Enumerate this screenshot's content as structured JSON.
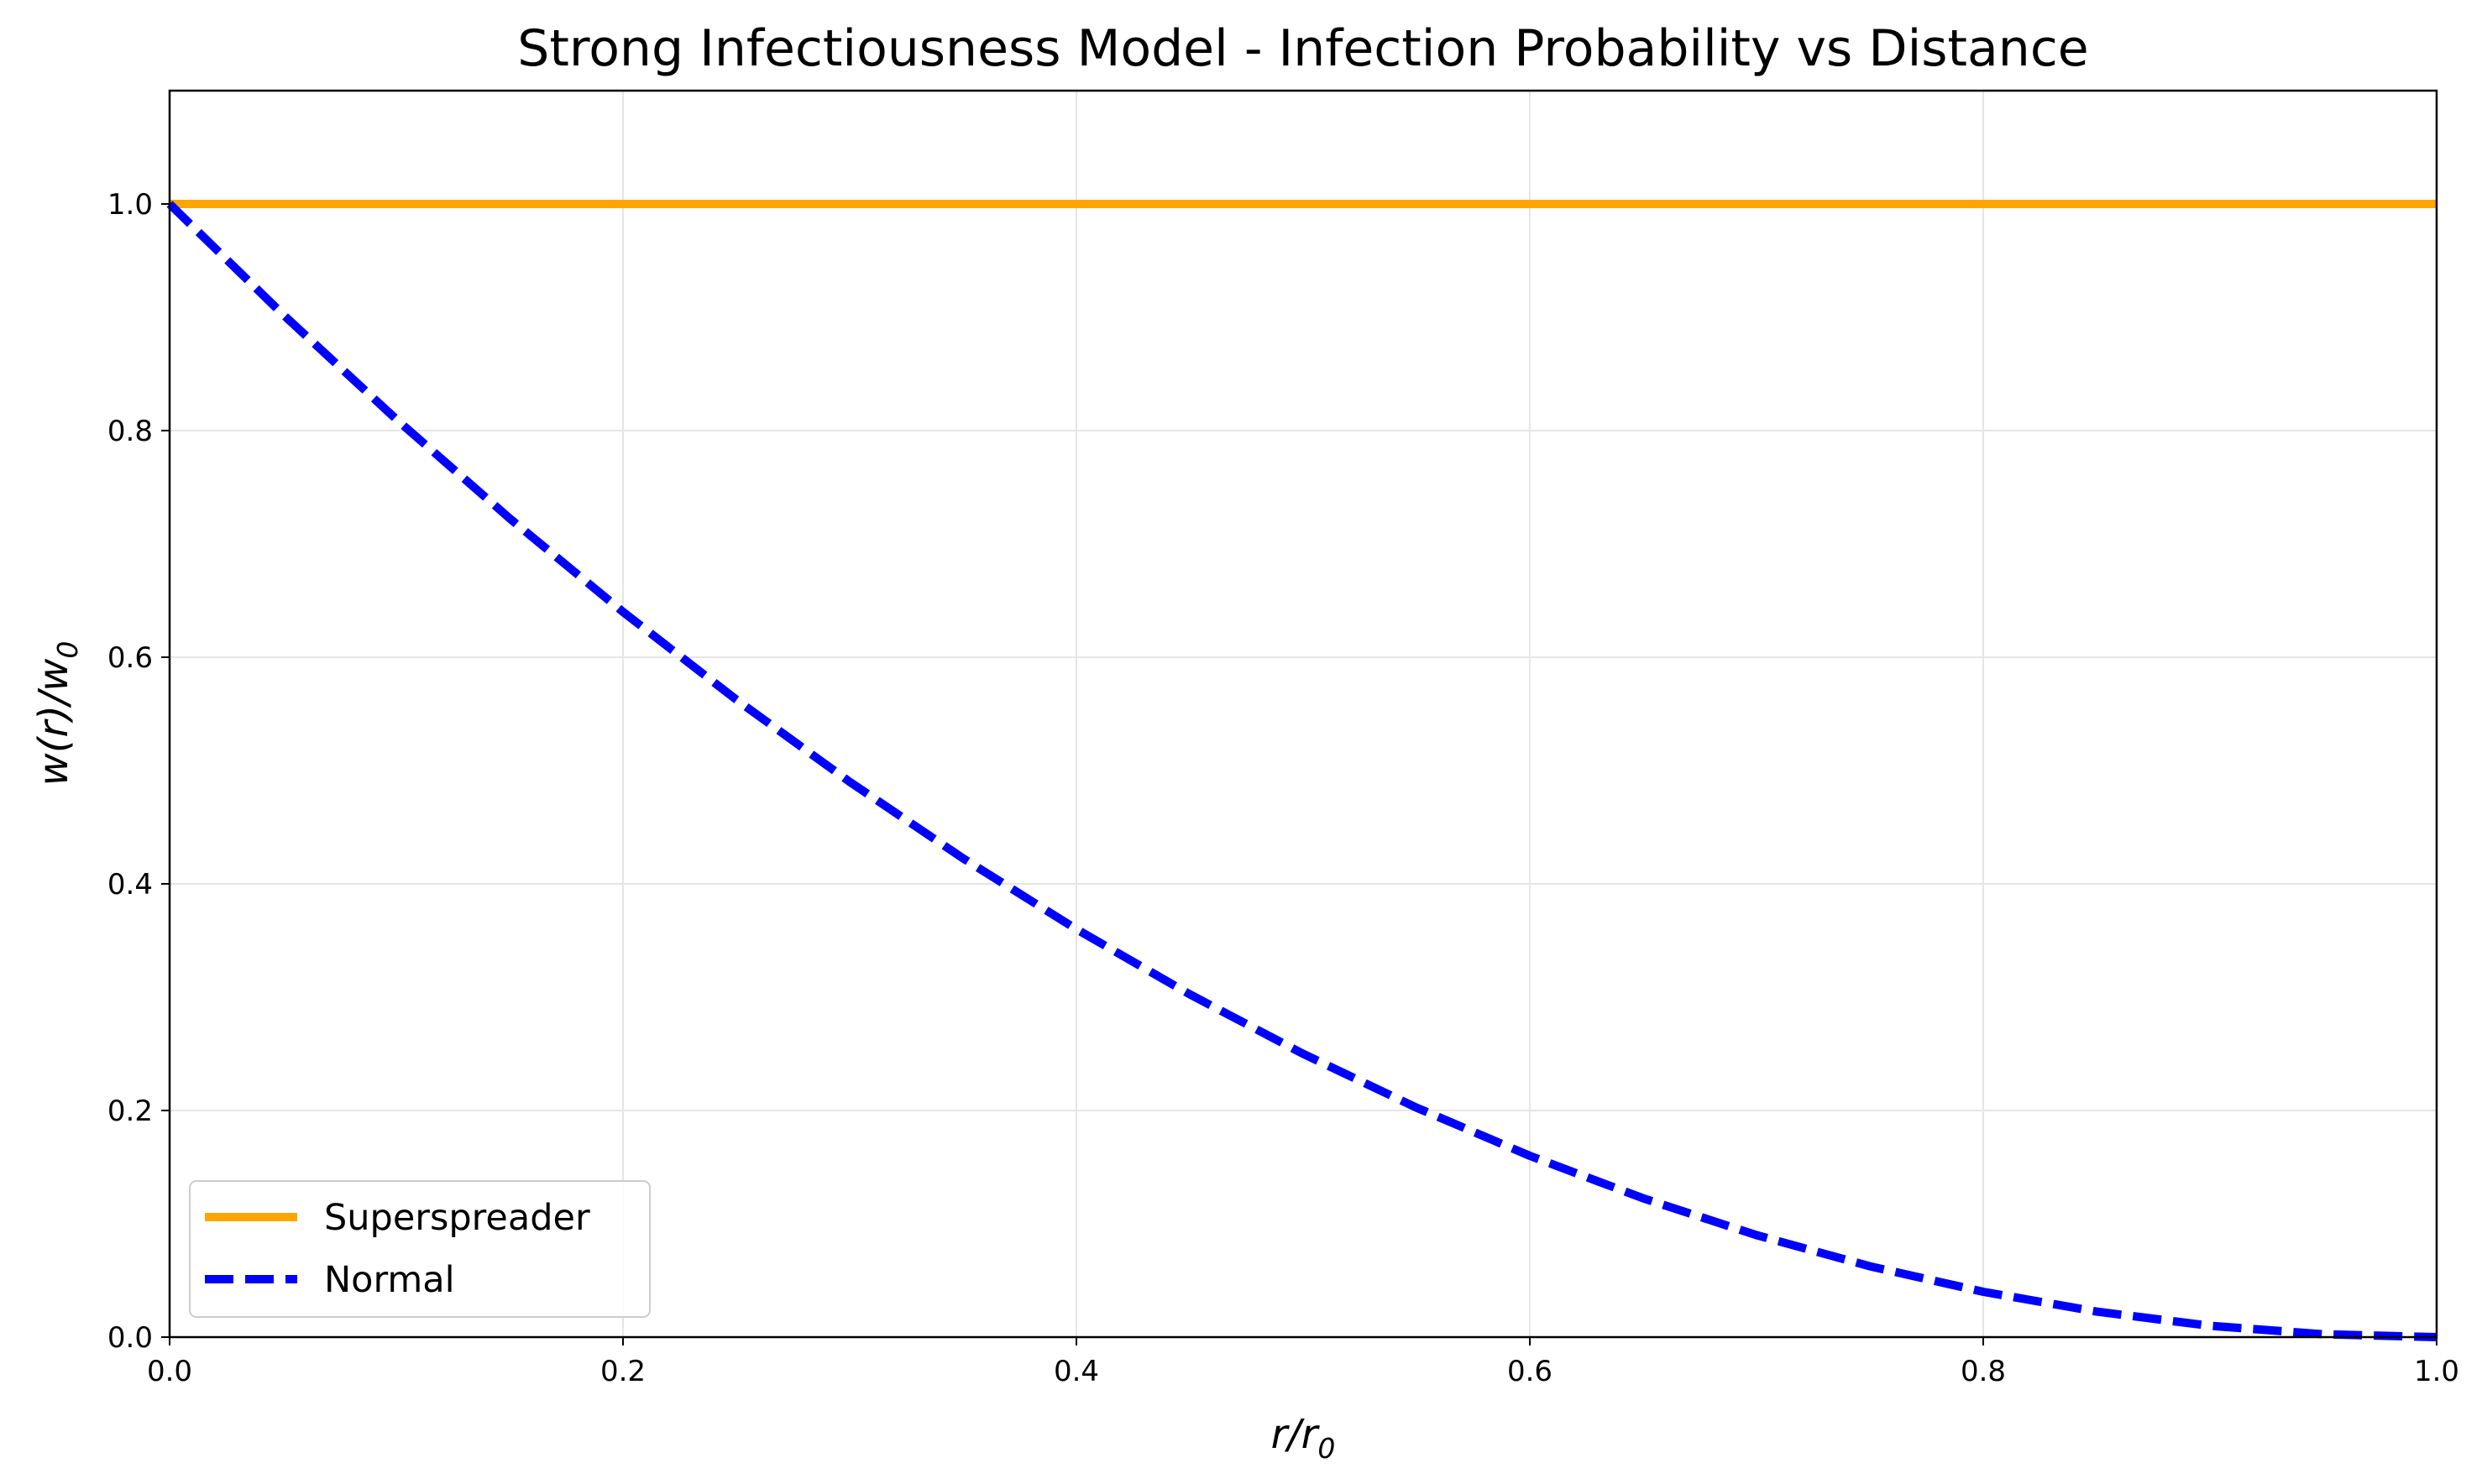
{
  "chart_data": {
    "type": "line",
    "title": "Strong Infectiousness Model - Infection Probability vs Distance",
    "xlabel": {
      "base": "r/r",
      "sub": "0"
    },
    "ylabel": {
      "base": "w(r)/w",
      "sub": "0"
    },
    "xlim": [
      0,
      1
    ],
    "ylim": [
      0,
      1.1
    ],
    "xticks": [
      "0.0",
      "0.2",
      "0.4",
      "0.6",
      "0.8",
      "1.0"
    ],
    "yticks": [
      "0.0",
      "0.2",
      "0.4",
      "0.6",
      "0.8",
      "1.0"
    ],
    "grid": true,
    "legend_position": "lower-left",
    "x": [
      0,
      0.05,
      0.1,
      0.15,
      0.2,
      0.25,
      0.3,
      0.35,
      0.4,
      0.45,
      0.5,
      0.55,
      0.6,
      0.65,
      0.7,
      0.75,
      0.8,
      0.85,
      0.9,
      0.95,
      1.0
    ],
    "series": [
      {
        "name": "Superspreader",
        "color": "#ffa500",
        "style": "solid",
        "values": [
          1,
          1,
          1,
          1,
          1,
          1,
          1,
          1,
          1,
          1,
          1,
          1,
          1,
          1,
          1,
          1,
          1,
          1,
          1,
          1,
          1
        ]
      },
      {
        "name": "Normal",
        "color": "#0000ff",
        "style": "dashed",
        "values": [
          1.0,
          0.9025,
          0.81,
          0.7225,
          0.64,
          0.5625,
          0.49,
          0.4225,
          0.36,
          0.3025,
          0.25,
          0.2025,
          0.16,
          0.1225,
          0.09,
          0.0625,
          0.04,
          0.0225,
          0.01,
          0.0025,
          0.0
        ]
      }
    ]
  }
}
